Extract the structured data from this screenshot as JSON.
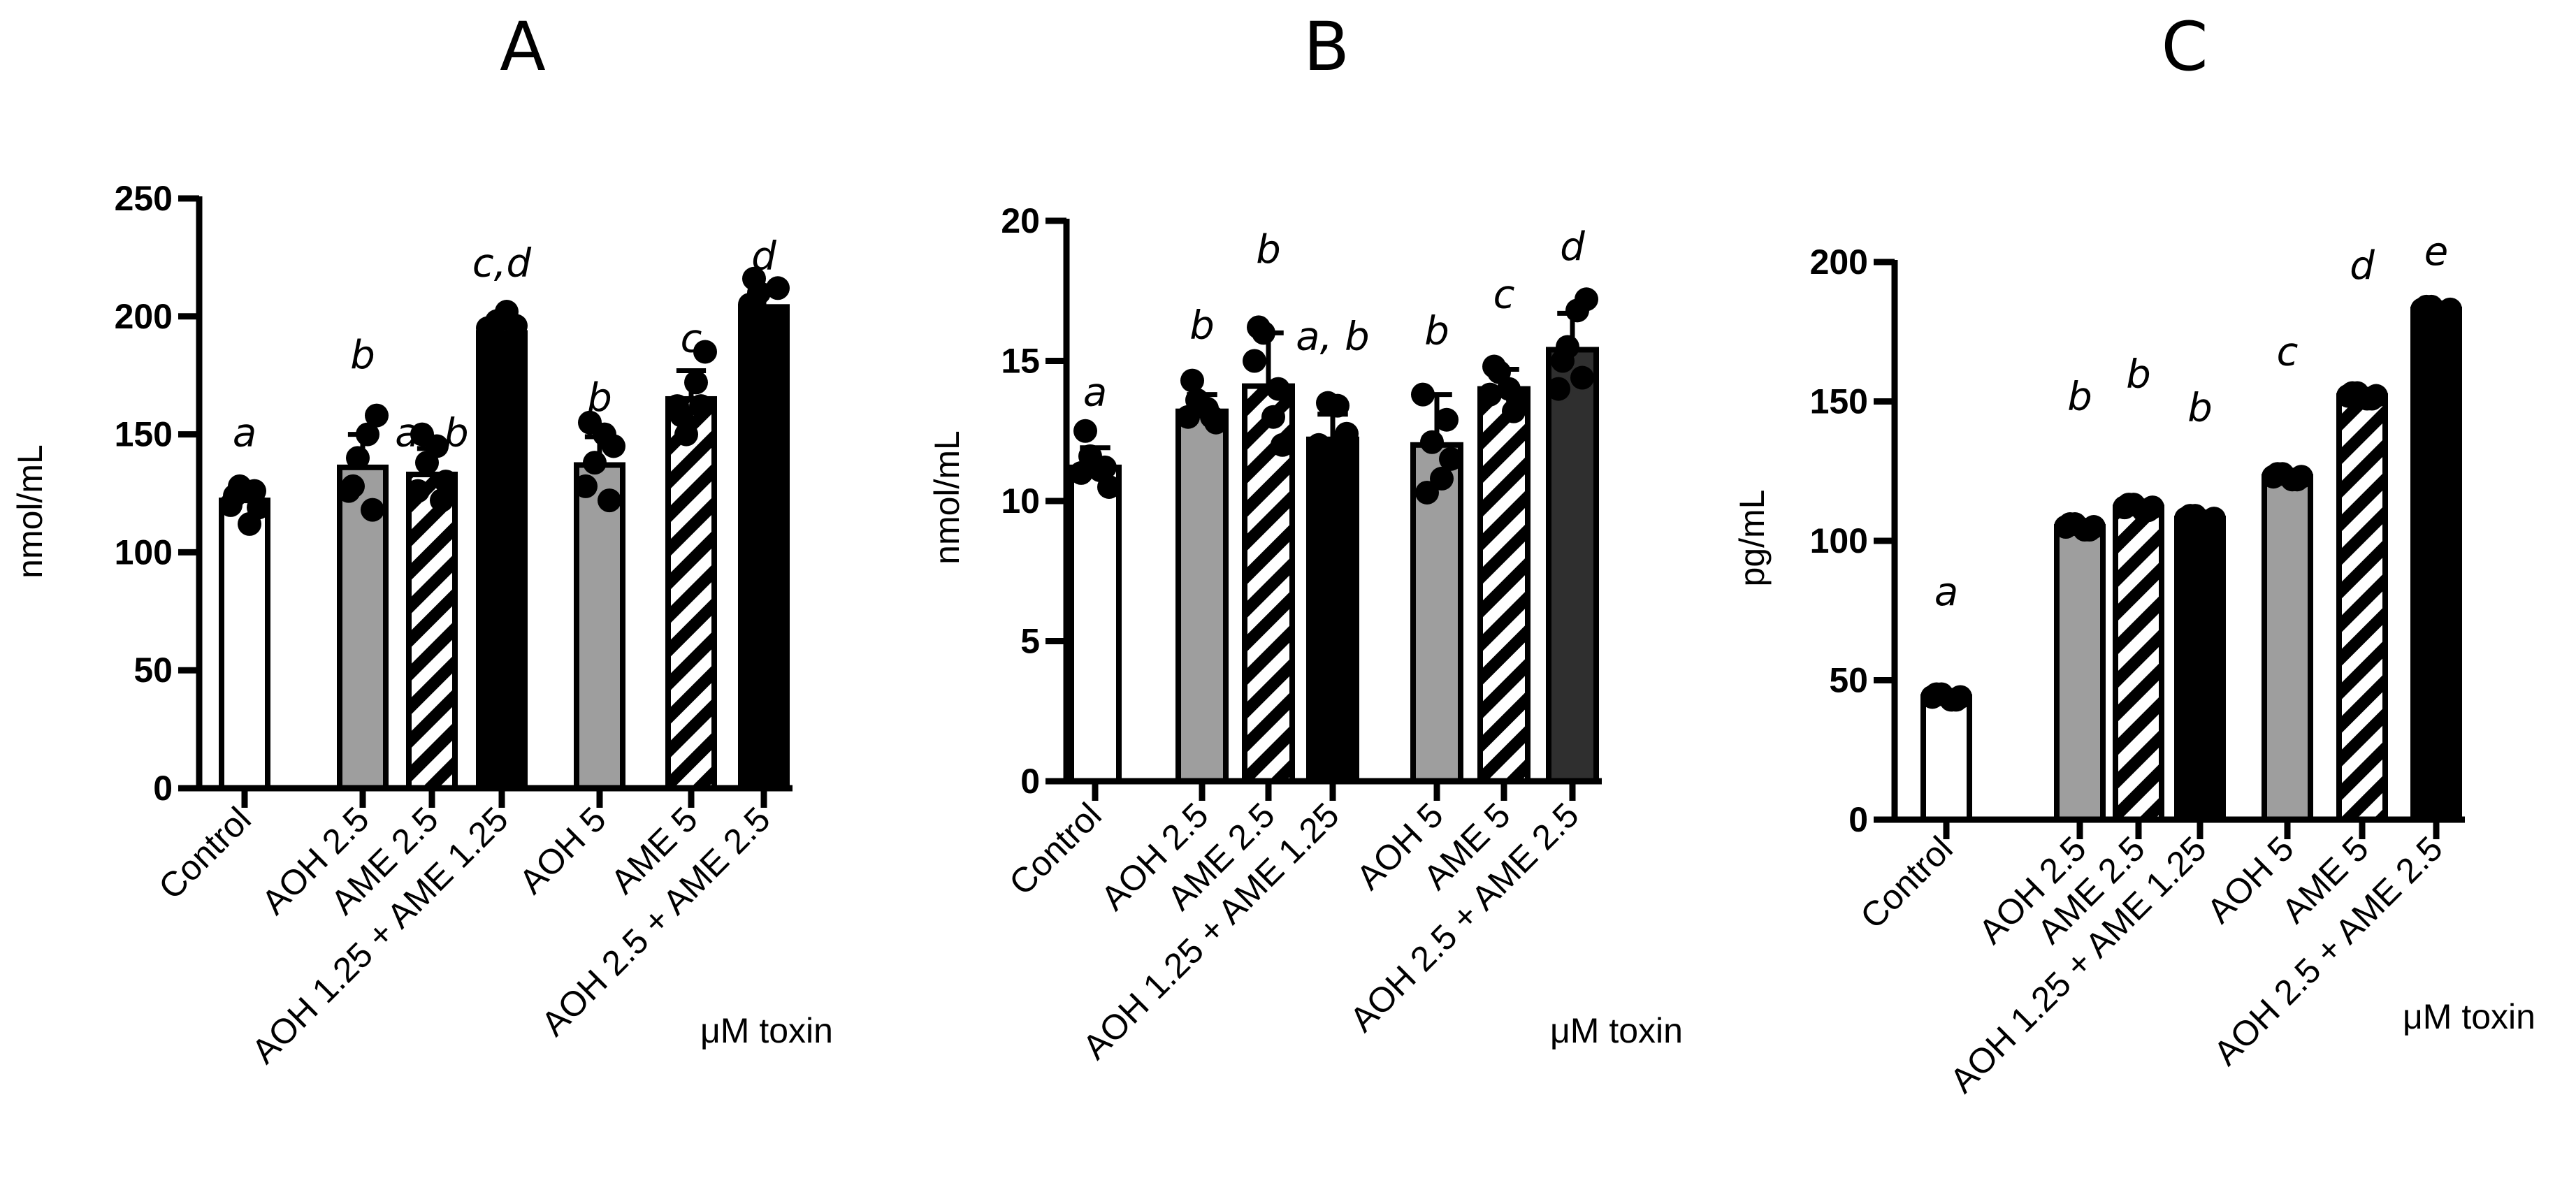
{
  "chart_data": [
    {
      "type": "bar",
      "panel": "A",
      "ylabel": "nmol/mL",
      "unit_label": "μM toxin",
      "ylim": [
        0,
        250
      ],
      "yticks": [
        0,
        50,
        100,
        150,
        200,
        250
      ],
      "categories": [
        "Control",
        "AOH 2.5",
        "AME 2.5",
        "AOH 1.25 + AME 1.25",
        "AOH 5",
        "AME 5",
        "AOH 2.5 + AME 2.5"
      ],
      "fills": [
        "white",
        "gray",
        "hatch",
        "black",
        "gray",
        "hatch",
        "black"
      ],
      "values": [
        122,
        136,
        133,
        193,
        137,
        165,
        204
      ],
      "errors": [
        7,
        14,
        11,
        5,
        12,
        12,
        9
      ],
      "points": [
        [
          120,
          128,
          112,
          119,
          124,
          126
        ],
        [
          126,
          140,
          150,
          158,
          128,
          118
        ],
        [
          126,
          138,
          145,
          130,
          150,
          122
        ],
        [
          195,
          198,
          202,
          196,
          190,
          188
        ],
        [
          128,
          138,
          150,
          145,
          155,
          122
        ],
        [
          162,
          150,
          172,
          185,
          158,
          162
        ],
        [
          205,
          210,
          200,
          212,
          216,
          198
        ]
      ],
      "sig_letters": [
        "a",
        "b",
        "a, b",
        "c,d",
        "b",
        "c",
        "d"
      ],
      "sig_values": [
        145,
        178,
        145,
        217,
        160,
        185,
        220
      ]
    },
    {
      "type": "bar",
      "panel": "B",
      "ylabel": "nmol/mL",
      "unit_label": "μM toxin",
      "ylim": [
        0,
        20
      ],
      "yticks": [
        0,
        5,
        10,
        15,
        20
      ],
      "categories": [
        "Control",
        "AOH 2.5",
        "AME 2.5",
        "AOH 1.25 + AME 1.25",
        "AOH 5",
        "AME 5",
        "AOH 2.5 + AME 2.5"
      ],
      "fills": [
        "white",
        "gray",
        "hatch",
        "black",
        "gray",
        "hatch",
        "darkgray"
      ],
      "values": [
        11.2,
        13.2,
        14.1,
        12.2,
        12.0,
        14.0,
        15.4
      ],
      "errors": [
        0.7,
        0.6,
        1.9,
        0.9,
        1.8,
        0.7,
        1.3
      ],
      "points": [
        [
          11.0,
          11.6,
          11.1,
          10.5,
          12.5,
          11.2
        ],
        [
          13.0,
          13.6,
          13.3,
          12.8,
          14.3,
          13.0
        ],
        [
          15.0,
          16.0,
          13.0,
          12.0,
          16.2,
          14.0
        ],
        [
          12.0,
          13.5,
          13.4,
          12.4,
          11.8,
          12.0
        ],
        [
          13.8,
          12.1,
          10.8,
          11.5,
          10.3,
          12.9
        ],
        [
          13.8,
          14.6,
          14.0,
          13.6,
          14.8,
          13.2
        ],
        [
          14.0,
          15.5,
          16.8,
          17.2,
          15.0,
          14.4
        ]
      ],
      "sig_letters": [
        "a",
        "b",
        "b",
        "a, b",
        "b",
        "c",
        "d"
      ],
      "sig_values": [
        13.4,
        15.8,
        18.5,
        15.4,
        15.6,
        16.9,
        18.6
      ]
    },
    {
      "type": "bar",
      "panel": "C",
      "ylabel": "pg/mL",
      "unit_label": "μM toxin",
      "ylim": [
        0,
        200
      ],
      "yticks": [
        0,
        50,
        100,
        150,
        200
      ],
      "categories": [
        "Control",
        "AOH 2.5",
        "AME 2.5",
        "AOH 1.25 + AME 1.25",
        "AOH 5",
        "AME 5",
        "AOH 2.5 + AME 2.5"
      ],
      "fills": [
        "white",
        "gray",
        "hatch",
        "black",
        "gray",
        "hatch",
        "black"
      ],
      "values": [
        44,
        105,
        112,
        108,
        123,
        152,
        183
      ],
      "errors": [
        2,
        2,
        2,
        2,
        2,
        2,
        2
      ],
      "points": [
        [
          44,
          45,
          43,
          44,
          45,
          43
        ],
        [
          105,
          106,
          104,
          105,
          106,
          104
        ],
        [
          112,
          113,
          111,
          112,
          113,
          111
        ],
        [
          108,
          109,
          107,
          108,
          109,
          107
        ],
        [
          123,
          124,
          122,
          123,
          124,
          122
        ],
        [
          152,
          153,
          151,
          152,
          153,
          151
        ],
        [
          183,
          184,
          182,
          183,
          184,
          182
        ]
      ],
      "sig_letters": [
        "a",
        "b",
        "b",
        "b",
        "c",
        "d",
        "e"
      ],
      "sig_values": [
        77,
        147,
        155,
        143,
        163,
        194,
        199
      ]
    }
  ]
}
